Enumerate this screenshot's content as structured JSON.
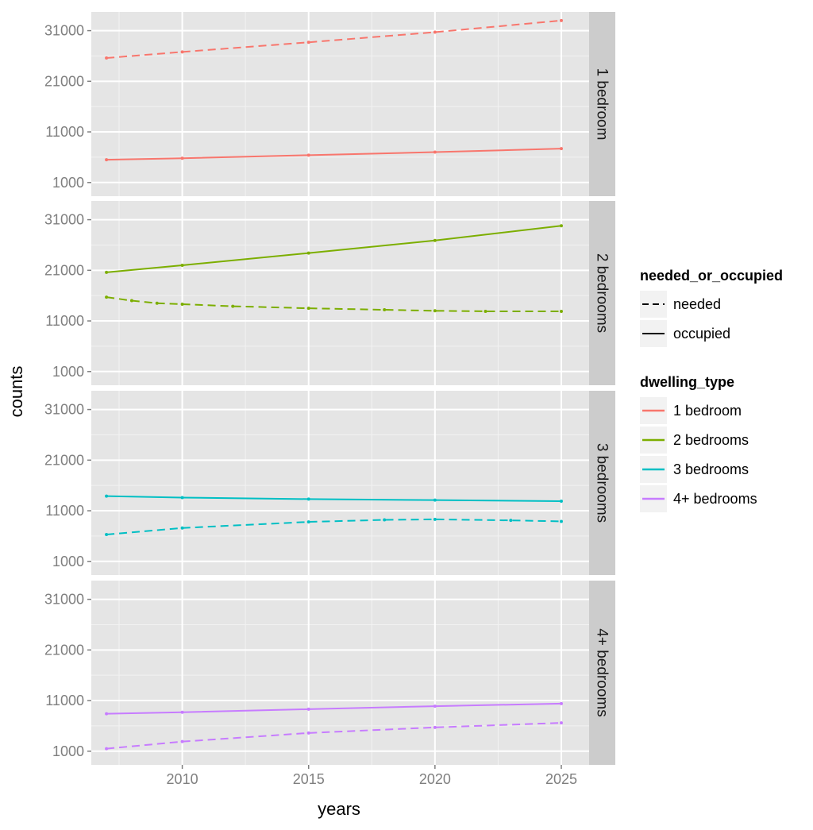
{
  "chart_data": {
    "type": "line",
    "xlabel": "years",
    "ylabel": "counts",
    "xlim": [
      2006.4,
      2026.1
    ],
    "ylim": [
      -1700,
      34700
    ],
    "xticks": [
      2010,
      2015,
      2020,
      2025
    ],
    "yticks": [
      1000,
      11000,
      21000,
      31000
    ],
    "colors": {
      "1 bedroom": "#f8766d",
      "2 bedrooms": "#7cae00",
      "3 bedrooms": "#00bfc4",
      "4+ bedrooms": "#c77cff"
    },
    "panels": [
      {
        "strip": "1 bedroom",
        "series": [
          {
            "dwelling_type": "1 bedroom",
            "needed_or_occupied": "needed",
            "x": [
              2007,
              2010,
              2015,
              2020,
              2025
            ],
            "y": [
              25600,
              26800,
              28700,
              30700,
              33000
            ]
          },
          {
            "dwelling_type": "1 bedroom",
            "needed_or_occupied": "occupied",
            "x": [
              2007,
              2010,
              2015,
              2020,
              2025
            ],
            "y": [
              5500,
              5800,
              6400,
              7000,
              7700
            ]
          }
        ]
      },
      {
        "strip": "2 bedrooms",
        "series": [
          {
            "dwelling_type": "2 bedrooms",
            "needed_or_occupied": "needed",
            "x": [
              2007,
              2008,
              2009,
              2010,
              2012,
              2015,
              2018,
              2020,
              2022,
              2025
            ],
            "y": [
              15700,
              15000,
              14500,
              14300,
              13900,
              13500,
              13200,
              13000,
              12900,
              12900
            ]
          },
          {
            "dwelling_type": "2 bedrooms",
            "needed_or_occupied": "occupied",
            "x": [
              2007,
              2010,
              2015,
              2020,
              2025
            ],
            "y": [
              20600,
              22000,
              24400,
              26900,
              29800
            ]
          }
        ]
      },
      {
        "strip": "3 bedrooms",
        "series": [
          {
            "dwelling_type": "3 bedrooms",
            "needed_or_occupied": "needed",
            "x": [
              2007,
              2010,
              2015,
              2018,
              2020,
              2023,
              2025
            ],
            "y": [
              6300,
              7600,
              8800,
              9200,
              9300,
              9100,
              8900
            ]
          },
          {
            "dwelling_type": "3 bedrooms",
            "needed_or_occupied": "occupied",
            "x": [
              2007,
              2010,
              2015,
              2020,
              2025
            ],
            "y": [
              13900,
              13600,
              13300,
              13100,
              12900
            ]
          }
        ]
      },
      {
        "strip": "4+ bedrooms",
        "series": [
          {
            "dwelling_type": "4+ bedrooms",
            "needed_or_occupied": "needed",
            "x": [
              2007,
              2010,
              2015,
              2020,
              2025
            ],
            "y": [
              1500,
              2900,
              4600,
              5700,
              6600
            ]
          },
          {
            "dwelling_type": "4+ bedrooms",
            "needed_or_occupied": "occupied",
            "x": [
              2007,
              2010,
              2015,
              2020,
              2025
            ],
            "y": [
              8400,
              8700,
              9300,
              9900,
              10400
            ]
          }
        ]
      }
    ],
    "legend": {
      "position": "right",
      "linetype": {
        "title": "needed_or_occupied",
        "items": [
          {
            "label": "needed",
            "dash": "dashed"
          },
          {
            "label": "occupied",
            "dash": "solid"
          }
        ]
      },
      "colour": {
        "title": "dwelling_type",
        "items": [
          "1 bedroom",
          "2 bedrooms",
          "3 bedrooms",
          "4+ bedrooms"
        ]
      }
    }
  }
}
